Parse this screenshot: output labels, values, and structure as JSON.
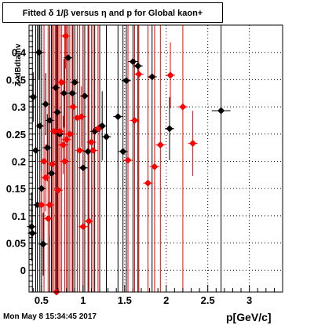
{
  "chart_data": {
    "type": "scatter",
    "title": "Fitted δ 1/β versus η and p for Global kaon+",
    "xlabel": "p[GeV/c]",
    "ylabel": "Z_dBdtainv",
    "xlim": [
      0.35,
      3.4
    ],
    "ylim": [
      -0.04,
      0.45
    ],
    "x_ticks": [
      0.5,
      1,
      1.5,
      2,
      2.5,
      3
    ],
    "x_tick_labels": [
      "0.5",
      "1",
      "1.5",
      "2",
      "2.5",
      "3"
    ],
    "y_ticks": [
      0,
      0.05,
      0.1,
      0.15,
      0.2,
      0.25,
      0.3,
      0.35,
      0.4
    ],
    "y_tick_labels": [
      "0",
      "0.05",
      "0.1",
      "0.15",
      "0.2",
      "0.25",
      "0.3",
      "0.35",
      "0.4"
    ],
    "grid": true,
    "series": [
      {
        "color": "#000000",
        "points": [
          {
            "x": 0.38,
            "y": 0.08
          },
          {
            "x": 0.39,
            "y": 0.068
          },
          {
            "x": 0.4,
            "y": 0.318
          },
          {
            "x": 0.43,
            "y": 0.22
          },
          {
            "x": 0.45,
            "y": 0.12
          },
          {
            "x": 0.47,
            "y": 0.4
          },
          {
            "x": 0.48,
            "y": 0.265
          },
          {
            "x": 0.5,
            "y": 0.15
          },
          {
            "x": 0.52,
            "y": 0.048
          },
          {
            "x": 0.55,
            "y": 0.305
          },
          {
            "x": 0.57,
            "y": 0.225
          },
          {
            "x": 0.6,
            "y": 0.275
          },
          {
            "x": 0.62,
            "y": 0.178
          },
          {
            "x": 0.67,
            "y": 0.335
          },
          {
            "x": 0.69,
            "y": 0.29
          },
          {
            "x": 0.72,
            "y": 0.25
          },
          {
            "x": 0.77,
            "y": 0.325
          },
          {
            "x": 0.82,
            "y": 0.39
          },
          {
            "x": 0.87,
            "y": 0.325
          },
          {
            "x": 0.9,
            "y": 0.345
          },
          {
            "x": 1.0,
            "y": 0.188
          },
          {
            "x": 1.02,
            "y": 0.32
          },
          {
            "x": 1.06,
            "y": 0.218
          },
          {
            "x": 1.14,
            "y": 0.255
          },
          {
            "x": 1.2,
            "y": 0.262
          },
          {
            "x": 1.23,
            "y": 0.265
          },
          {
            "x": 1.28,
            "y": 0.245
          },
          {
            "x": 1.42,
            "y": 0.282
          },
          {
            "x": 1.48,
            "y": 0.218
          },
          {
            "x": 1.52,
            "y": 0.348
          },
          {
            "x": 1.6,
            "y": 0.383
          },
          {
            "x": 1.66,
            "y": 0.375
          },
          {
            "x": 1.83,
            "y": 0.355
          },
          {
            "x": 2.04,
            "y": 0.26
          },
          {
            "x": 2.66,
            "y": 0.293
          }
        ]
      },
      {
        "color": "#ff0000",
        "points": [
          {
            "x": 0.5,
            "y": 0.12
          },
          {
            "x": 0.53,
            "y": 0.2
          },
          {
            "x": 0.55,
            "y": 0.17
          },
          {
            "x": 0.58,
            "y": 0.095
          },
          {
            "x": 0.6,
            "y": 0.12
          },
          {
            "x": 0.63,
            "y": 0.195
          },
          {
            "x": 0.65,
            "y": 0.255
          },
          {
            "x": 0.68,
            "y": -0.04
          },
          {
            "x": 0.7,
            "y": 0.147
          },
          {
            "x": 0.72,
            "y": 0.255
          },
          {
            "x": 0.74,
            "y": 0.345
          },
          {
            "x": 0.76,
            "y": 0.23
          },
          {
            "x": 0.78,
            "y": 0.2
          },
          {
            "x": 0.79,
            "y": 0.43
          },
          {
            "x": 0.8,
            "y": 0.24
          },
          {
            "x": 0.84,
            "y": 0.25
          },
          {
            "x": 0.88,
            "y": 0.3
          },
          {
            "x": 0.93,
            "y": 0.28
          },
          {
            "x": 0.96,
            "y": 0.22
          },
          {
            "x": 0.98,
            "y": 0.282
          },
          {
            "x": 1.0,
            "y": 0.08
          },
          {
            "x": 1.07,
            "y": 0.09
          },
          {
            "x": 1.1,
            "y": 0.235
          },
          {
            "x": 1.12,
            "y": 0.22
          },
          {
            "x": 1.18,
            "y": 0.26
          },
          {
            "x": 1.54,
            "y": 0.202
          },
          {
            "x": 1.62,
            "y": 0.275
          },
          {
            "x": 1.67,
            "y": 0.36
          },
          {
            "x": 1.78,
            "y": 0.16
          },
          {
            "x": 1.86,
            "y": 0.19
          },
          {
            "x": 1.93,
            "y": 0.23
          },
          {
            "x": 2.05,
            "y": 0.358
          },
          {
            "x": 2.2,
            "y": 0.3
          },
          {
            "x": 2.32,
            "y": 0.233
          }
        ]
      }
    ]
  }
}
